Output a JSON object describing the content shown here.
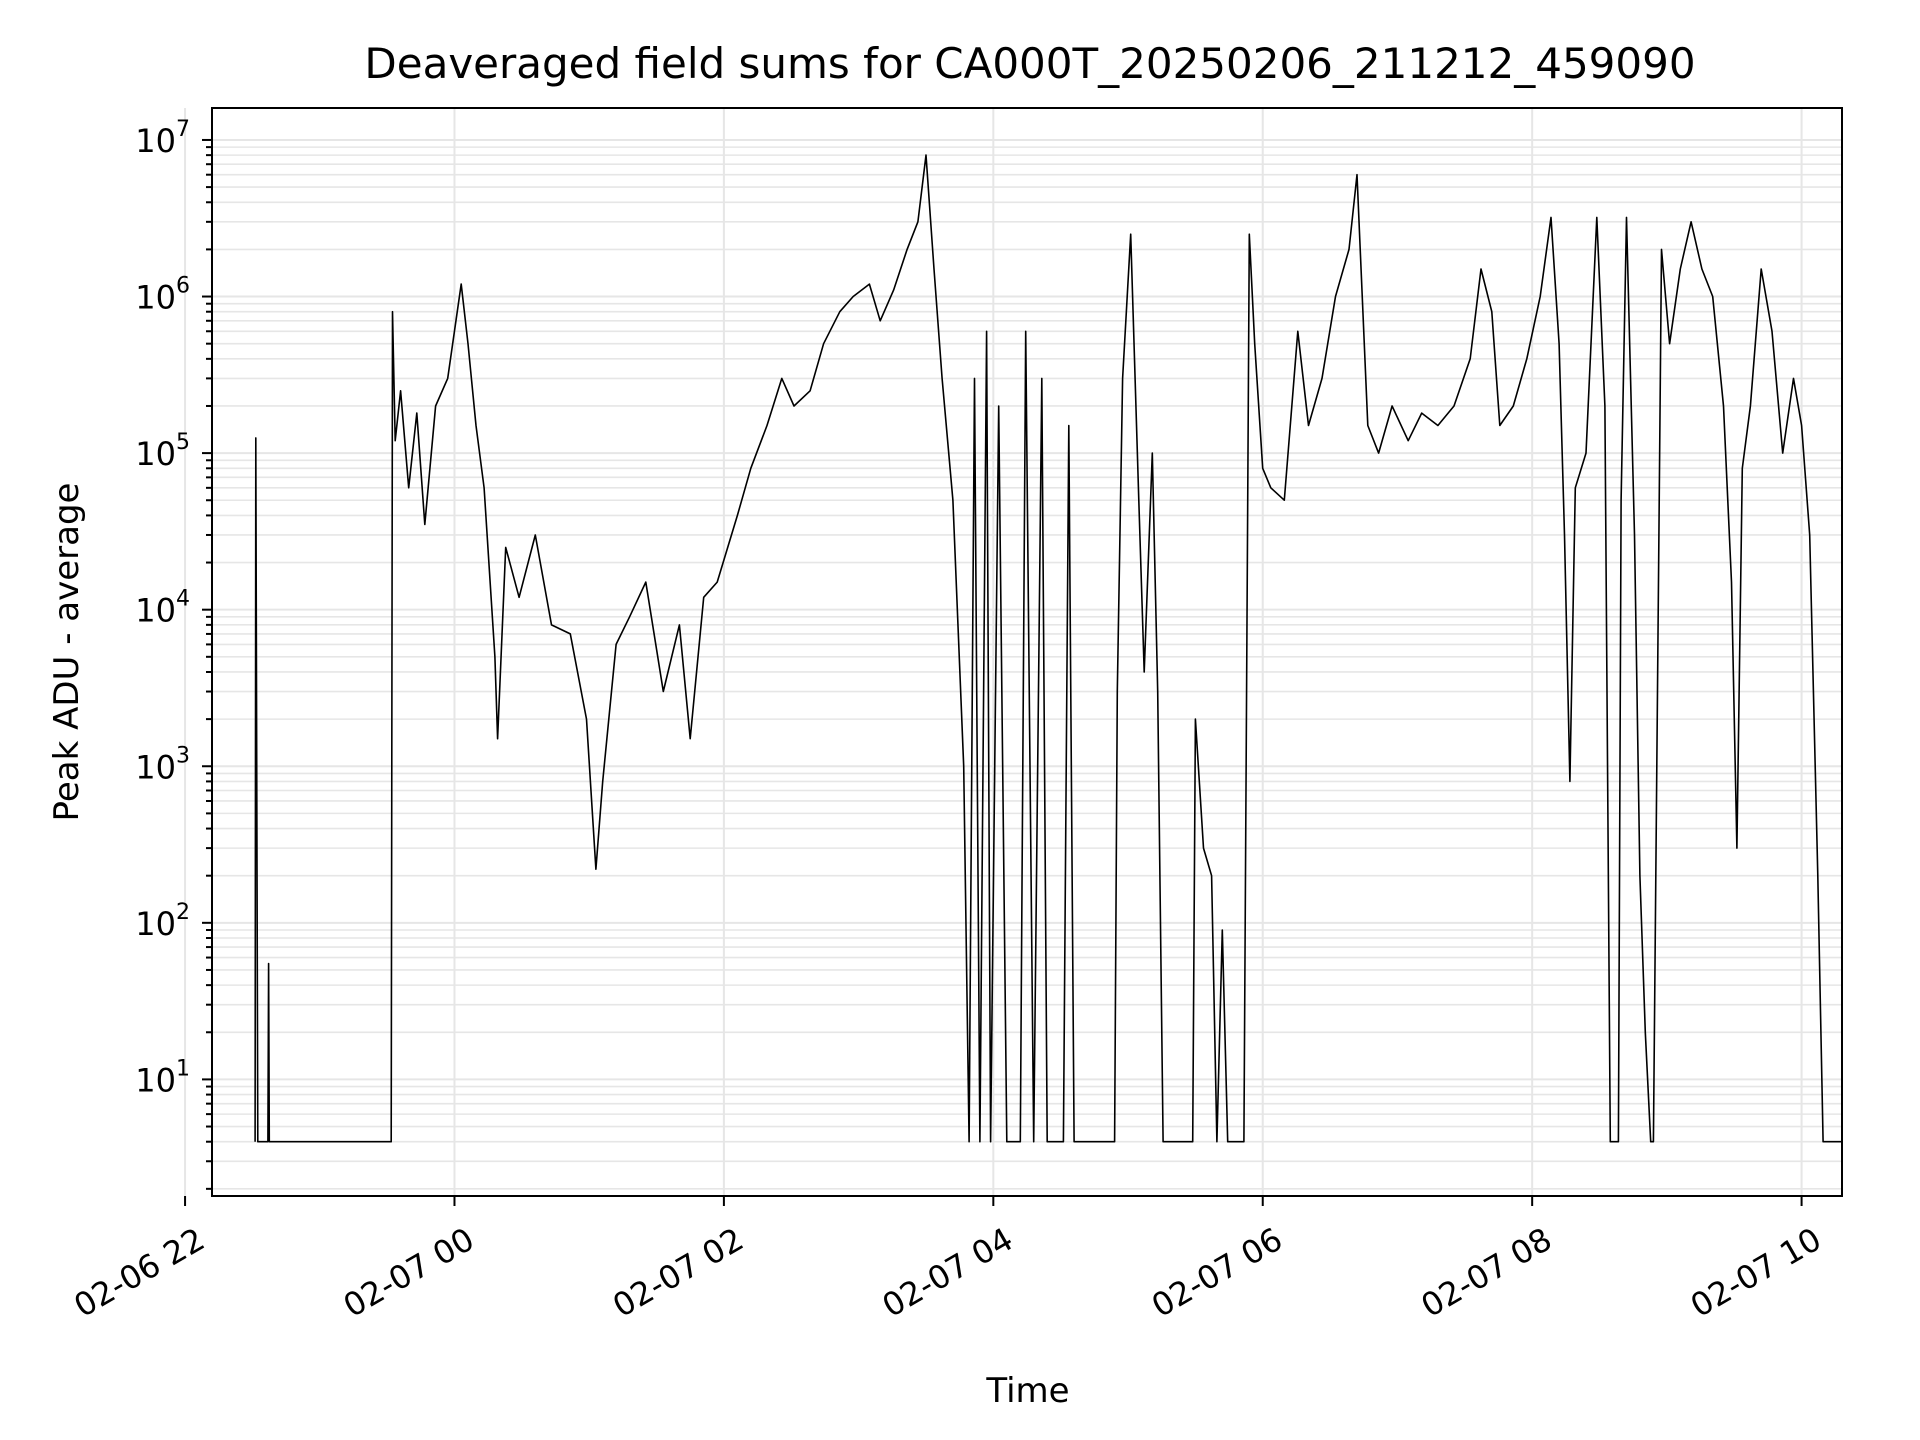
{
  "chart_data": {
    "type": "line",
    "title": "Deaveraged field sums for CA000T_20250206_211212_459090",
    "xlabel": "Time",
    "ylabel": "Peak ADU - average",
    "yscale": "log",
    "grid": true,
    "line_color": "#000000",
    "grid_color": "#e6e6e6",
    "x_ticks": [
      "02-06 22",
      "02-07 00",
      "02-07 02",
      "02-07 04",
      "02-07 06",
      "02-07 08",
      "02-07 10"
    ],
    "y_ticks": [
      {
        "base": "10",
        "exp": "1",
        "value": 10
      },
      {
        "base": "10",
        "exp": "2",
        "value": 100
      },
      {
        "base": "10",
        "exp": "3",
        "value": 1000
      },
      {
        "base": "10",
        "exp": "4",
        "value": 10000
      },
      {
        "base": "10",
        "exp": "5",
        "value": 100000
      },
      {
        "base": "10",
        "exp": "6",
        "value": 1000000
      },
      {
        "base": "10",
        "exp": "7",
        "value": 10000000
      }
    ],
    "x_range_hours": [
      -1.8,
      10.3
    ],
    "y_range": [
      1.8,
      16000000
    ],
    "series": [
      {
        "points": [
          [
            -1.48,
            4
          ],
          [
            -1.475,
            125000
          ],
          [
            -1.46,
            4
          ],
          [
            -1.385,
            4
          ],
          [
            -1.38,
            55
          ],
          [
            -1.375,
            4
          ],
          [
            -0.47,
            4
          ],
          [
            -0.46,
            800000
          ],
          [
            -0.44,
            120000
          ],
          [
            -0.4,
            250000
          ],
          [
            -0.34,
            60000
          ],
          [
            -0.28,
            180000
          ],
          [
            -0.22,
            35000
          ],
          [
            -0.14,
            200000
          ],
          [
            -0.05,
            300000
          ],
          [
            0.05,
            1200000
          ],
          [
            0.1,
            500000
          ],
          [
            0.16,
            150000
          ],
          [
            0.22,
            60000
          ],
          [
            0.3,
            5000
          ],
          [
            0.32,
            1500
          ],
          [
            0.38,
            25000
          ],
          [
            0.48,
            12000
          ],
          [
            0.6,
            30000
          ],
          [
            0.72,
            8000
          ],
          [
            0.86,
            7000
          ],
          [
            0.98,
            2000
          ],
          [
            1.05,
            220
          ],
          [
            1.1,
            800
          ],
          [
            1.2,
            6000
          ],
          [
            1.3,
            9000
          ],
          [
            1.42,
            15000
          ],
          [
            1.55,
            3000
          ],
          [
            1.67,
            8000
          ],
          [
            1.75,
            1500
          ],
          [
            1.85,
            12000
          ],
          [
            1.95,
            15000
          ],
          [
            2.1,
            40000
          ],
          [
            2.2,
            80000
          ],
          [
            2.32,
            150000
          ],
          [
            2.43,
            300000
          ],
          [
            2.52,
            200000
          ],
          [
            2.64,
            250000
          ],
          [
            2.74,
            500000
          ],
          [
            2.86,
            800000
          ],
          [
            2.96,
            1000000
          ],
          [
            3.08,
            1200000
          ],
          [
            3.16,
            700000
          ],
          [
            3.26,
            1100000
          ],
          [
            3.36,
            2000000
          ],
          [
            3.44,
            3000000
          ],
          [
            3.5,
            8000000
          ],
          [
            3.56,
            1500000
          ],
          [
            3.62,
            300000
          ],
          [
            3.7,
            50000
          ],
          [
            3.78,
            1000
          ],
          [
            3.82,
            4
          ],
          [
            3.86,
            300000
          ],
          [
            3.9,
            4
          ],
          [
            3.95,
            600000
          ],
          [
            3.98,
            4
          ],
          [
            4.04,
            200000
          ],
          [
            4.1,
            4
          ],
          [
            4.2,
            4
          ],
          [
            4.24,
            600000
          ],
          [
            4.3,
            4
          ],
          [
            4.36,
            300000
          ],
          [
            4.4,
            4
          ],
          [
            4.52,
            4
          ],
          [
            4.56,
            150000
          ],
          [
            4.6,
            4
          ],
          [
            4.9,
            4
          ],
          [
            4.92,
            3000
          ],
          [
            4.96,
            300000
          ],
          [
            5.02,
            2500000
          ],
          [
            5.08,
            50000
          ],
          [
            5.12,
            4000
          ],
          [
            5.18,
            100000
          ],
          [
            5.22,
            3000
          ],
          [
            5.26,
            4
          ],
          [
            5.48,
            4
          ],
          [
            5.5,
            2000
          ],
          [
            5.56,
            300
          ],
          [
            5.62,
            200
          ],
          [
            5.66,
            4
          ],
          [
            5.7,
            90
          ],
          [
            5.74,
            4
          ],
          [
            5.86,
            4
          ],
          [
            5.9,
            2500000
          ],
          [
            5.94,
            500000
          ],
          [
            6.0,
            80000
          ],
          [
            6.06,
            60000
          ],
          [
            6.16,
            50000
          ],
          [
            6.26,
            600000
          ],
          [
            6.34,
            150000
          ],
          [
            6.44,
            300000
          ],
          [
            6.54,
            1000000
          ],
          [
            6.64,
            2000000
          ],
          [
            6.7,
            6000000
          ],
          [
            6.78,
            150000
          ],
          [
            6.86,
            100000
          ],
          [
            6.96,
            200000
          ],
          [
            7.08,
            120000
          ],
          [
            7.18,
            180000
          ],
          [
            7.3,
            150000
          ],
          [
            7.42,
            200000
          ],
          [
            7.54,
            400000
          ],
          [
            7.62,
            1500000
          ],
          [
            7.7,
            800000
          ],
          [
            7.76,
            150000
          ],
          [
            7.86,
            200000
          ],
          [
            7.96,
            400000
          ],
          [
            8.06,
            1000000
          ],
          [
            8.14,
            3200000
          ],
          [
            8.2,
            500000
          ],
          [
            8.24,
            30000
          ],
          [
            8.28,
            800
          ],
          [
            8.32,
            60000
          ],
          [
            8.4,
            100000
          ],
          [
            8.48,
            3200000
          ],
          [
            8.54,
            200000
          ],
          [
            8.58,
            4
          ],
          [
            8.64,
            4
          ],
          [
            8.66,
            50000
          ],
          [
            8.7,
            3200000
          ],
          [
            8.76,
            30000
          ],
          [
            8.8,
            200
          ],
          [
            8.84,
            20
          ],
          [
            8.88,
            4
          ],
          [
            8.9,
            4
          ],
          [
            8.96,
            2000000
          ],
          [
            9.02,
            500000
          ],
          [
            9.1,
            1500000
          ],
          [
            9.18,
            3000000
          ],
          [
            9.26,
            1500000
          ],
          [
            9.34,
            1000000
          ],
          [
            9.42,
            200000
          ],
          [
            9.48,
            15000
          ],
          [
            9.52,
            300
          ],
          [
            9.56,
            80000
          ],
          [
            9.62,
            200000
          ],
          [
            9.7,
            1500000
          ],
          [
            9.78,
            600000
          ],
          [
            9.86,
            100000
          ],
          [
            9.94,
            300000
          ],
          [
            10.0,
            150000
          ],
          [
            10.06,
            30000
          ],
          [
            10.12,
            200
          ],
          [
            10.16,
            4
          ],
          [
            10.3,
            4
          ]
        ]
      }
    ]
  }
}
